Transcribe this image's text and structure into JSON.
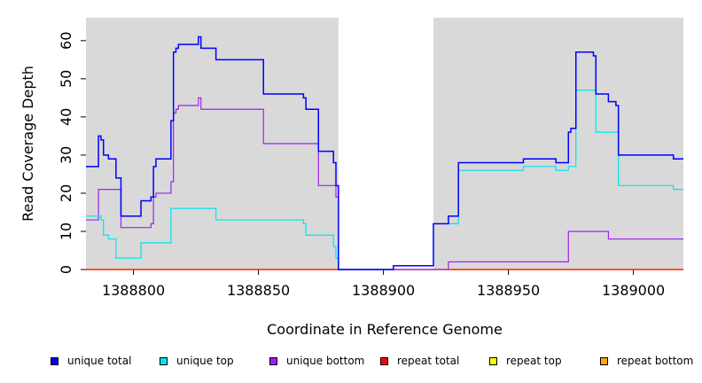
{
  "chart_data": {
    "type": "line",
    "title": "",
    "xlabel": "Coordinate in Reference Genome",
    "ylabel": "Read Coverage Depth",
    "xlim": [
      1388781,
      1389020
    ],
    "ylim": [
      0,
      66
    ],
    "x_ticks": [
      1388800,
      1388850,
      1388900,
      1388950,
      1389000
    ],
    "x_tick_labels": [
      "1388800",
      "1388850",
      "1388900",
      "1388950",
      "1389000"
    ],
    "y_ticks": [
      0,
      10,
      20,
      30,
      40,
      50,
      60
    ],
    "y_tick_labels": [
      "0",
      "10",
      "20",
      "30",
      "40",
      "50",
      "60"
    ],
    "background": "#d9d9d9",
    "gap_region": [
      1388882,
      1388920
    ],
    "gap_color": "#ffffff",
    "legend_position": "bottom",
    "series": [
      {
        "name": "unique total",
        "color": "#0000ff",
        "points": [
          [
            1388781,
            27
          ],
          [
            1388786,
            35
          ],
          [
            1388787,
            34
          ],
          [
            1388788,
            30
          ],
          [
            1388790,
            29
          ],
          [
            1388793,
            24
          ],
          [
            1388795,
            14
          ],
          [
            1388803,
            18
          ],
          [
            1388807,
            19
          ],
          [
            1388808,
            27
          ],
          [
            1388809,
            29
          ],
          [
            1388815,
            39
          ],
          [
            1388816,
            57
          ],
          [
            1388817,
            58
          ],
          [
            1388818,
            59
          ],
          [
            1388826,
            61
          ],
          [
            1388827,
            58
          ],
          [
            1388833,
            55
          ],
          [
            1388852,
            46
          ],
          [
            1388868,
            45
          ],
          [
            1388869,
            42
          ],
          [
            1388874,
            31
          ],
          [
            1388880,
            28
          ],
          [
            1388881,
            22
          ],
          [
            1388882,
            0
          ],
          [
            1388904,
            1
          ],
          [
            1388920,
            12
          ],
          [
            1388926,
            14
          ],
          [
            1388930,
            28
          ],
          [
            1388956,
            29
          ],
          [
            1388969,
            28
          ],
          [
            1388974,
            36
          ],
          [
            1388975,
            37
          ],
          [
            1388977,
            57
          ],
          [
            1388984,
            56
          ],
          [
            1388985,
            46
          ],
          [
            1388990,
            44
          ],
          [
            1388993,
            43
          ],
          [
            1388994,
            30
          ],
          [
            1389016,
            29
          ],
          [
            1389020,
            29
          ]
        ]
      },
      {
        "name": "unique top",
        "color": "#00e5ee",
        "points": [
          [
            1388781,
            14
          ],
          [
            1388787,
            13
          ],
          [
            1388788,
            9
          ],
          [
            1388790,
            8
          ],
          [
            1388793,
            3
          ],
          [
            1388803,
            7
          ],
          [
            1388815,
            16
          ],
          [
            1388833,
            13
          ],
          [
            1388868,
            12
          ],
          [
            1388869,
            9
          ],
          [
            1388880,
            6
          ],
          [
            1388881,
            3
          ],
          [
            1388882,
            0
          ],
          [
            1388904,
            1
          ],
          [
            1388920,
            12
          ],
          [
            1388930,
            26
          ],
          [
            1388956,
            27
          ],
          [
            1388969,
            26
          ],
          [
            1388974,
            27
          ],
          [
            1388977,
            47
          ],
          [
            1388985,
            36
          ],
          [
            1388994,
            22
          ],
          [
            1389016,
            21
          ],
          [
            1389020,
            21
          ]
        ]
      },
      {
        "name": "unique bottom",
        "color": "#a020f0",
        "points": [
          [
            1388781,
            13
          ],
          [
            1388786,
            21
          ],
          [
            1388795,
            11
          ],
          [
            1388807,
            12
          ],
          [
            1388808,
            19
          ],
          [
            1388809,
            20
          ],
          [
            1388815,
            23
          ],
          [
            1388816,
            41
          ],
          [
            1388817,
            42
          ],
          [
            1388818,
            43
          ],
          [
            1388826,
            45
          ],
          [
            1388827,
            42
          ],
          [
            1388852,
            33
          ],
          [
            1388874,
            22
          ],
          [
            1388881,
            19
          ],
          [
            1388882,
            0
          ],
          [
            1388926,
            2
          ],
          [
            1388974,
            10
          ],
          [
            1388990,
            8
          ],
          [
            1389020,
            8
          ]
        ]
      },
      {
        "name": "repeat total",
        "color": "#ff0000",
        "points": [
          [
            1388781,
            0
          ],
          [
            1389020,
            0
          ]
        ]
      },
      {
        "name": "repeat top",
        "color": "#ffff00",
        "points": [
          [
            1388781,
            0
          ],
          [
            1389020,
            0
          ]
        ]
      },
      {
        "name": "repeat bottom",
        "color": "#ffa500",
        "points": [
          [
            1388781,
            0
          ],
          [
            1389020,
            0
          ]
        ]
      }
    ]
  }
}
